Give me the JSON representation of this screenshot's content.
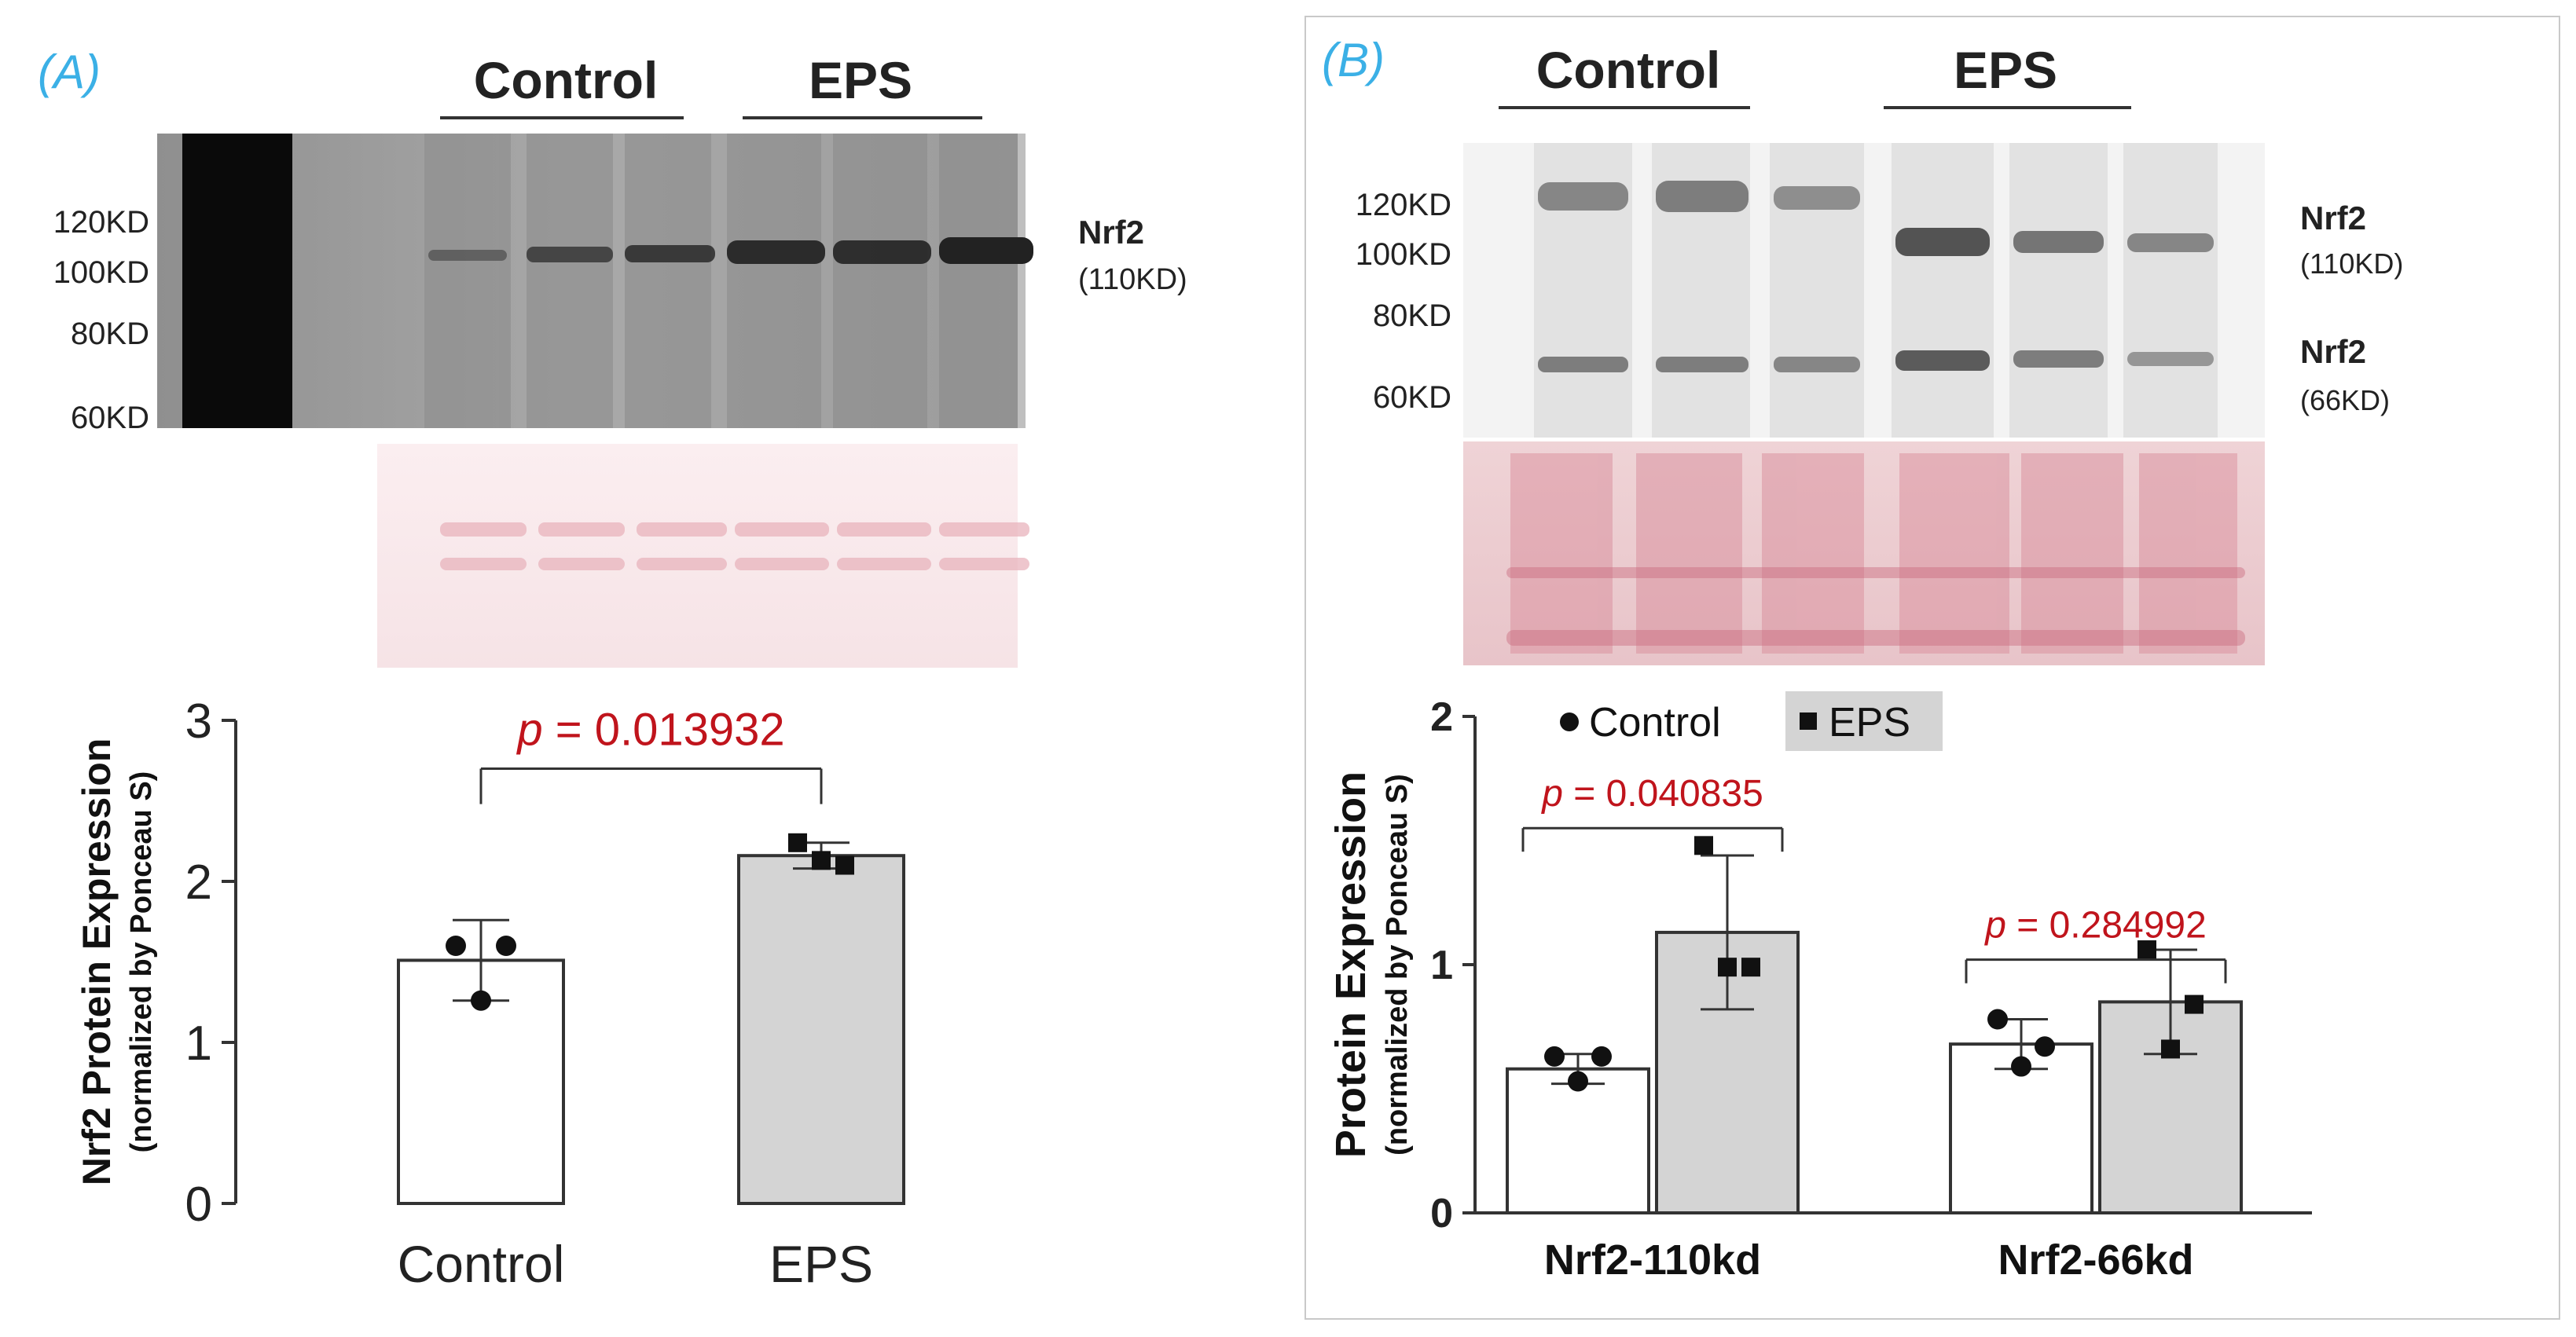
{
  "colors": {
    "control_fill": "#ffffff",
    "eps_fill": "#d4d4d4",
    "pvalue": "#c0141c",
    "panel_label": "#3bb0e6"
  },
  "panel_a": {
    "label": "(A)",
    "group_labels": [
      "Control",
      "EPS"
    ],
    "markers": [
      "120KD",
      "100KD",
      "80KD",
      "60KD"
    ],
    "band_name": "Nrf2",
    "band_size": "(110KD)"
  },
  "panel_b": {
    "label": "(B)",
    "group_labels": [
      "Control",
      "EPS"
    ],
    "markers": [
      "120KD",
      "100KD",
      "80KD",
      "60KD"
    ],
    "band_names": [
      "Nrf2",
      "Nrf2"
    ],
    "band_sizes": [
      "(110KD)",
      "(66KD)"
    ]
  },
  "chart_data": [
    {
      "type": "bar",
      "categories": [
        "Control",
        "EPS"
      ],
      "values": [
        1.51,
        2.16
      ],
      "error": [
        0.25,
        0.08
      ],
      "points": [
        [
          1.6,
          1.6,
          1.26
        ],
        [
          2.24,
          2.1,
          2.13
        ]
      ],
      "ylabel": "Nrf2 Protein Expression",
      "ylabel_sub": "(normalized by Ponceau S)",
      "ylim": [
        0,
        3
      ],
      "yticks": [
        "0",
        "1",
        "2",
        "3"
      ],
      "p_prefix": "p",
      "p_text": " = 0.013932"
    },
    {
      "type": "bar",
      "categories": [
        "Nrf2-110kd",
        "Nrf2-66kd"
      ],
      "series": [
        {
          "name": "Control",
          "values": [
            0.58,
            0.68
          ],
          "error": [
            0.06,
            0.1
          ],
          "points": [
            [
              0.63,
              0.63,
              0.53
            ],
            [
              0.78,
              0.67,
              0.59
            ]
          ]
        },
        {
          "name": "EPS",
          "values": [
            1.13,
            0.85
          ],
          "error": [
            0.31,
            0.21
          ],
          "points": [
            [
              1.48,
              0.99,
              0.99
            ],
            [
              1.06,
              0.84,
              0.66
            ]
          ]
        }
      ],
      "ylabel": "Protein Expression",
      "ylabel_sub": "(normalized by Ponceau S)",
      "ylim": [
        0,
        2
      ],
      "yticks": [
        "0",
        "1",
        "2"
      ],
      "p_prefix": "p",
      "p_texts": [
        " = 0.040835",
        " = 0.284992"
      ]
    }
  ]
}
